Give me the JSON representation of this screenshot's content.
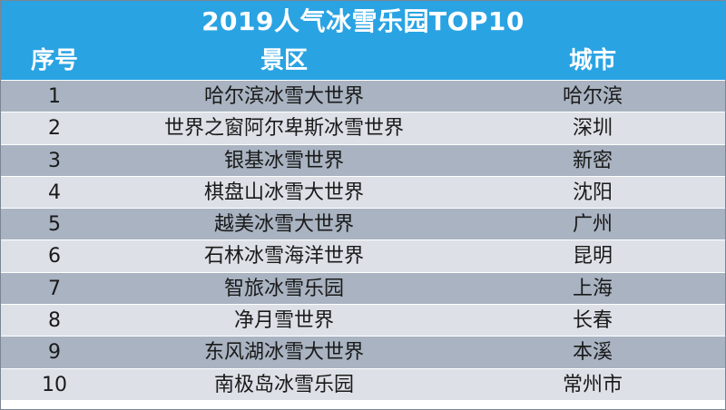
{
  "chart_data": {
    "type": "table",
    "title": "2019人气冰雪乐园TOP10",
    "columns": [
      "序号",
      "景区",
      "城市"
    ],
    "rows": [
      {
        "no": "1",
        "spot": "哈尔滨冰雪大世界",
        "city": "哈尔滨"
      },
      {
        "no": "2",
        "spot": "世界之窗阿尔卑斯冰雪世界",
        "city": "深圳"
      },
      {
        "no": "3",
        "spot": "银基冰雪世界",
        "city": "新密"
      },
      {
        "no": "4",
        "spot": "棋盘山冰雪大世界",
        "city": "沈阳"
      },
      {
        "no": "5",
        "spot": "越美冰雪大世界",
        "city": "广州"
      },
      {
        "no": "6",
        "spot": "石林冰雪海洋世界",
        "city": "昆明"
      },
      {
        "no": "7",
        "spot": "智旅冰雪乐园",
        "city": "上海"
      },
      {
        "no": "8",
        "spot": "净月雪世界",
        "city": "长春"
      },
      {
        "no": "9",
        "spot": "东风湖冰雪大世界",
        "city": "本溪"
      },
      {
        "no": "10",
        "spot": "南极岛冰雪乐园",
        "city": "常州市"
      }
    ],
    "colors": {
      "header_bg": "#2aa3e3",
      "header_text": "#ffffff",
      "row_dark": "#a9b3c1",
      "row_light": "#dde1e7",
      "cell_text": "#1a1a1a"
    }
  }
}
